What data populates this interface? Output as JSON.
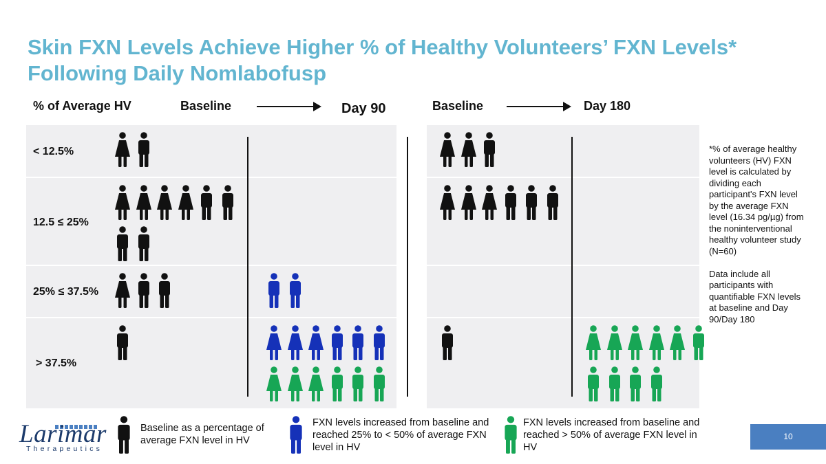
{
  "title": "Skin FXN Levels Achieve Higher % of Healthy Volunteers’ FXN Levels* Following Daily Nomlabofusp",
  "headers": {
    "category": "% of Average HV",
    "left_baseline": "Baseline",
    "left_day": "Day 90",
    "right_baseline": "Baseline",
    "right_day": "Day 180"
  },
  "rows": [
    "< 12.5%",
    "12.5 ≤ 25%",
    "25% ≤ 37.5%",
    "> 37.5%"
  ],
  "colors": {
    "baseline": "#111111",
    "blue": "#1531b8",
    "green": "#17a655",
    "title": "#62b5d0",
    "page_box": "#4a7fc1"
  },
  "chart_data": {
    "type": "table",
    "row_categories": [
      "< 12.5%",
      "12.5 ≤ 25%",
      "25% ≤ 37.5%",
      "> 37.5%"
    ],
    "panels": [
      {
        "columns": [
          "Baseline",
          "Day 90"
        ],
        "cells": [
          {
            "row": "< 12.5%",
            "Baseline": {
              "female": 1,
              "male": 1
            },
            "Day 90": {}
          },
          {
            "row": "12.5 ≤ 25%",
            "Baseline": {
              "female": 4,
              "male": 4
            },
            "Day 90": {}
          },
          {
            "row": "25% ≤ 37.5%",
            "Baseline": {
              "female": 1,
              "male": 2
            },
            "Day 90": {
              "blue_male": 2
            }
          },
          {
            "row": "> 37.5%",
            "Baseline": {
              "male": 1
            },
            "Day 90": {
              "blue_female": 3,
              "blue_male": 3,
              "green_female": 3,
              "green_male": 3
            }
          }
        ]
      },
      {
        "columns": [
          "Baseline",
          "Day 180"
        ],
        "cells": [
          {
            "row": "< 12.5%",
            "Baseline": {
              "female": 2,
              "male": 1
            },
            "Day 180": {}
          },
          {
            "row": "12.5 ≤ 25%",
            "Baseline": {
              "female": 3,
              "male": 3
            },
            "Day 180": {}
          },
          {
            "row": "25% ≤ 37.5%",
            "Baseline": {},
            "Day 180": {}
          },
          {
            "row": "> 37.5%",
            "Baseline": {
              "male": 1
            },
            "Day 180": {
              "green_female": 5,
              "green_male": 5
            }
          }
        ]
      }
    ]
  },
  "legend": {
    "baseline": "Baseline as a percentage of average FXN level in HV",
    "blue": "FXN levels increased from baseline and reached 25% to < 50% of average FXN level in HV",
    "green": "FXN levels increased from baseline and reached > 50% of average FXN level in HV"
  },
  "footnote": "*% of average healthy volunteers (HV) FXN level is calculated by dividing each participant's FXN level by the average FXN level (16.34 pg/µg) from the noninterventional healthy volunteer study (N=60)\n\nData include all participants with quantifiable FXN levels at baseline and Day 90/Day 180",
  "logo": {
    "name": "Larimar",
    "sub": "Therapeutics"
  },
  "page_number": "10"
}
